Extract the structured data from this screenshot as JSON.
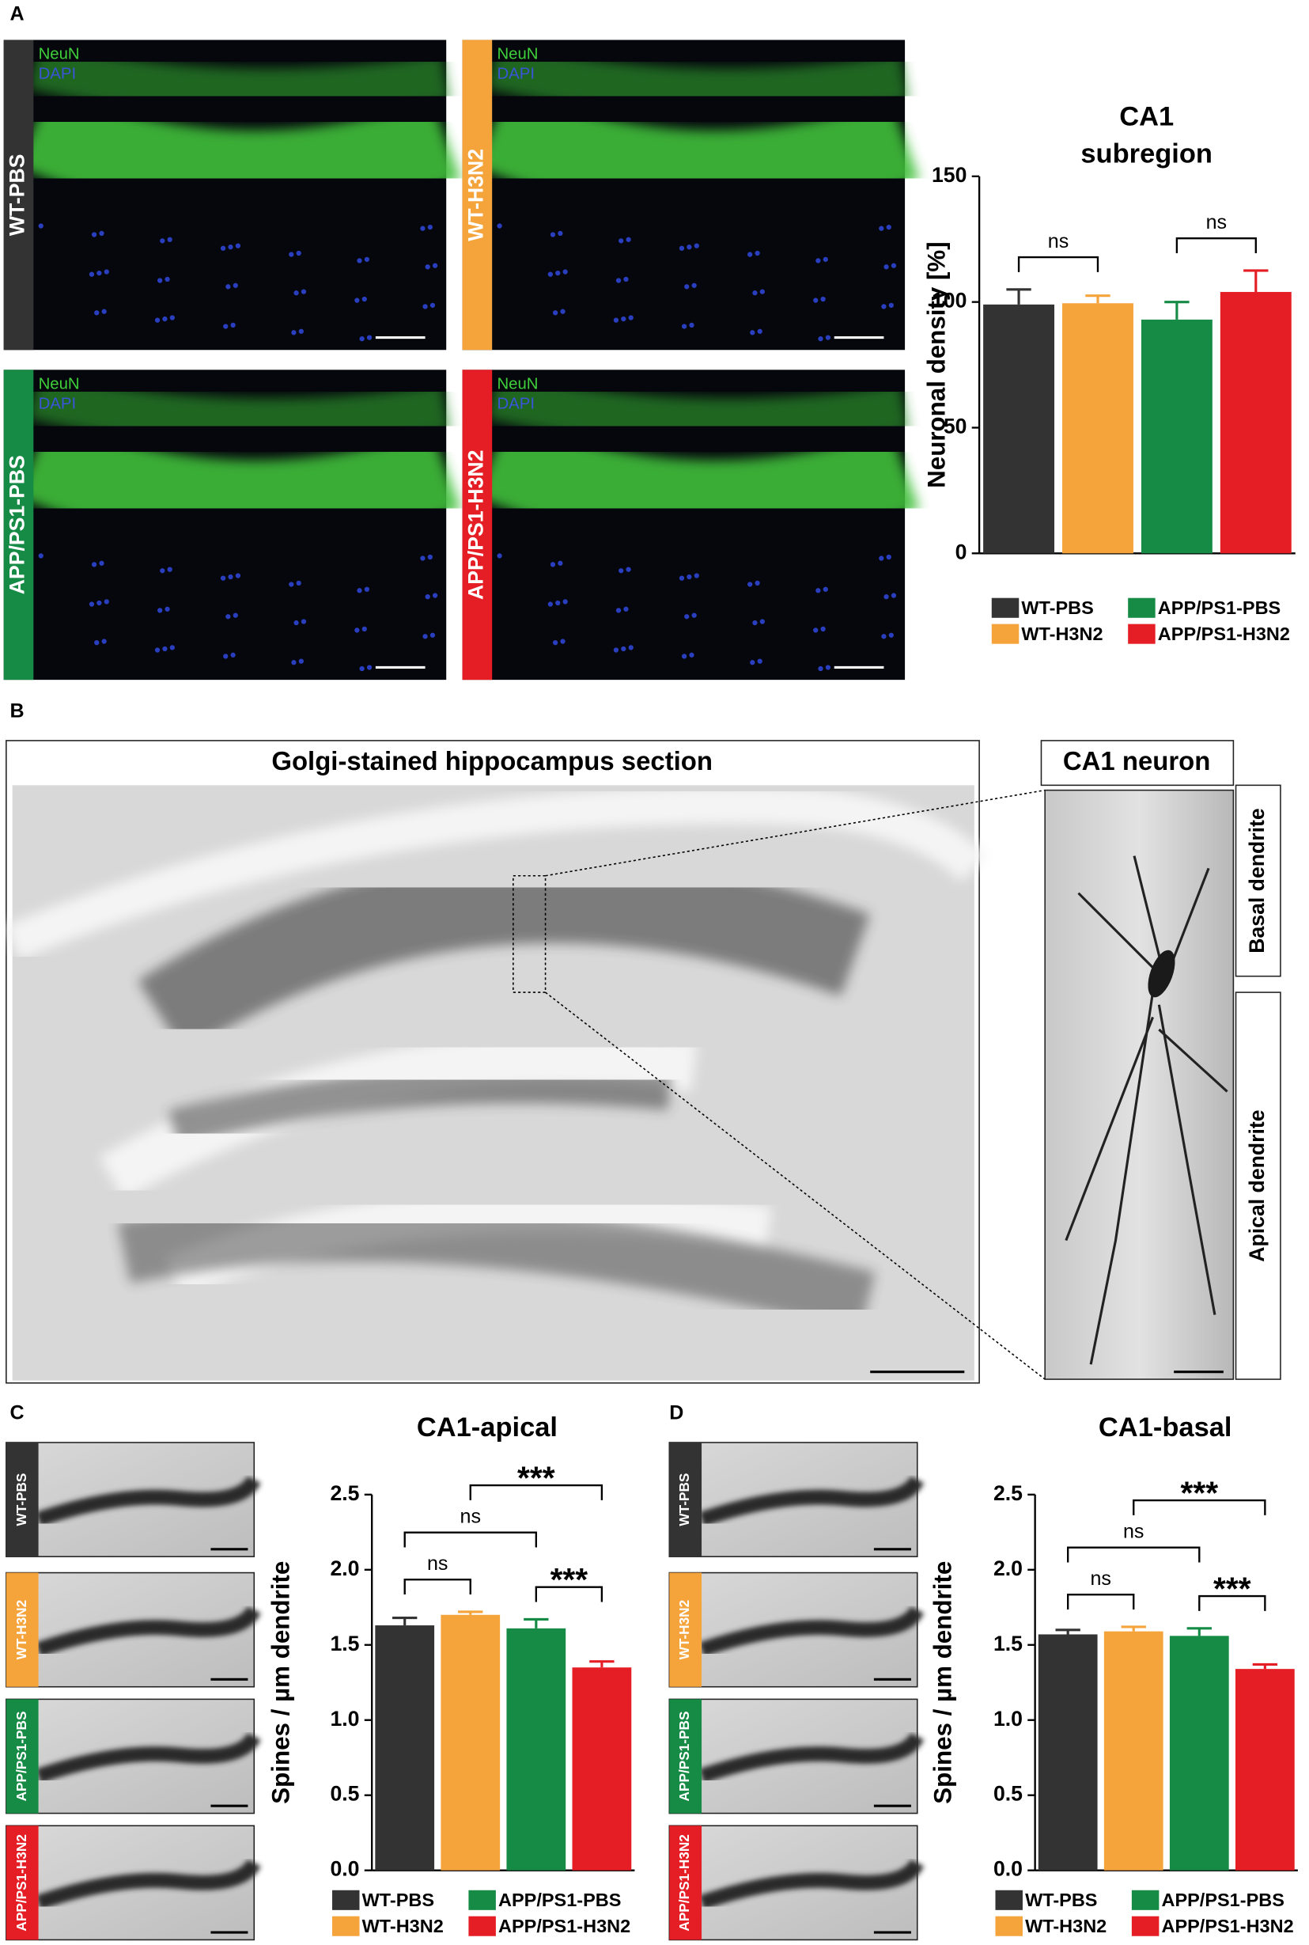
{
  "figure": {
    "A": {
      "label": "A",
      "stain": [
        "NeuN",
        "DAPI"
      ],
      "images": [
        "WT-PBS",
        "WT-H3N2",
        "APP/PS1-PBS",
        "APP/PS1-H3N2"
      ]
    },
    "B": {
      "label": "B",
      "title": "Golgi-stained hippocampus section",
      "inset_title": "CA1 neuron",
      "regions": [
        "Basal dendrite",
        "Apical dendrite"
      ]
    },
    "C": {
      "label": "C",
      "images": [
        "WT-PBS",
        "WT-H3N2",
        "APP/PS1-PBS",
        "APP/PS1-H3N2"
      ]
    },
    "D": {
      "label": "D",
      "images": [
        "WT-PBS",
        "WT-H3N2",
        "APP/PS1-PBS",
        "APP/PS1-H3N2"
      ]
    }
  },
  "chart_data": [
    {
      "type": "bar",
      "title": [
        "CA1",
        "subregion"
      ],
      "ylabel": "Neuronal density [%]",
      "categories": [
        "WT-PBS",
        "WT-H3N2",
        "APP/PS1-PBS",
        "APP/PS1-H3N2"
      ],
      "values": [
        99,
        99.5,
        93,
        104
      ],
      "errors": [
        6,
        3,
        7,
        8.5
      ],
      "colors": [
        "#333333",
        "#f5a33b",
        "#168b45",
        "#e51e25"
      ],
      "ylim": [
        0,
        150
      ],
      "yticks": [
        0,
        50,
        100,
        150
      ],
      "comparisons": [
        {
          "groups": [
            "WT-PBS",
            "WT-H3N2"
          ],
          "label": "ns"
        },
        {
          "groups": [
            "APP/PS1-PBS",
            "APP/PS1-H3N2"
          ],
          "label": "ns"
        }
      ],
      "legend": true
    },
    {
      "type": "bar",
      "title": [
        "CA1-apical"
      ],
      "ylabel": "Spines / µm dendrite",
      "categories": [
        "WT-PBS",
        "WT-H3N2",
        "APP/PS1-PBS",
        "APP/PS1-H3N2"
      ],
      "values": [
        1.63,
        1.7,
        1.61,
        1.35
      ],
      "errors": [
        0.05,
        0.02,
        0.06,
        0.04
      ],
      "colors": [
        "#333333",
        "#f5a33b",
        "#168b45",
        "#e51e25"
      ],
      "ylim": [
        0,
        2.5
      ],
      "yticks": [
        {
          "value": 0,
          "label": "0.0"
        },
        0.5,
        {
          "value": 1,
          "label": "1.0"
        },
        1.5,
        {
          "value": 2,
          "label": "2.0"
        },
        2.5
      ],
      "comparisons": [
        {
          "groups": [
            "WT-PBS",
            "WT-H3N2"
          ],
          "label": "ns"
        },
        {
          "groups": [
            "APP/PS1-PBS",
            "APP/PS1-H3N2"
          ],
          "label": "***"
        },
        {
          "groups": [
            "WT-PBS",
            "APP/PS1-PBS"
          ],
          "label": "ns"
        },
        {
          "groups": [
            "WT-H3N2",
            "APP/PS1-H3N2"
          ],
          "label": "***"
        }
      ],
      "legend": true
    },
    {
      "type": "bar",
      "title": [
        "CA1-basal"
      ],
      "ylabel": "Spines / µm dendrite",
      "categories": [
        "WT-PBS",
        "WT-H3N2",
        "APP/PS1-PBS",
        "APP/PS1-H3N2"
      ],
      "values": [
        1.57,
        1.59,
        1.56,
        1.34
      ],
      "errors": [
        0.03,
        0.03,
        0.05,
        0.03
      ],
      "colors": [
        "#333333",
        "#f5a33b",
        "#168b45",
        "#e51e25"
      ],
      "ylim": [
        0,
        2.5
      ],
      "yticks": [
        {
          "value": 0,
          "label": "0.0"
        },
        0.5,
        {
          "value": 1,
          "label": "1.0"
        },
        1.5,
        {
          "value": 2,
          "label": "2.0"
        },
        2.5
      ],
      "comparisons": [
        {
          "groups": [
            "WT-PBS",
            "WT-H3N2"
          ],
          "label": "ns"
        },
        {
          "groups": [
            "APP/PS1-PBS",
            "APP/PS1-H3N2"
          ],
          "label": "***"
        },
        {
          "groups": [
            "WT-PBS",
            "APP/PS1-PBS"
          ],
          "label": "ns"
        },
        {
          "groups": [
            "WT-H3N2",
            "APP/PS1-H3N2"
          ],
          "label": "***"
        }
      ],
      "legend": true
    }
  ]
}
